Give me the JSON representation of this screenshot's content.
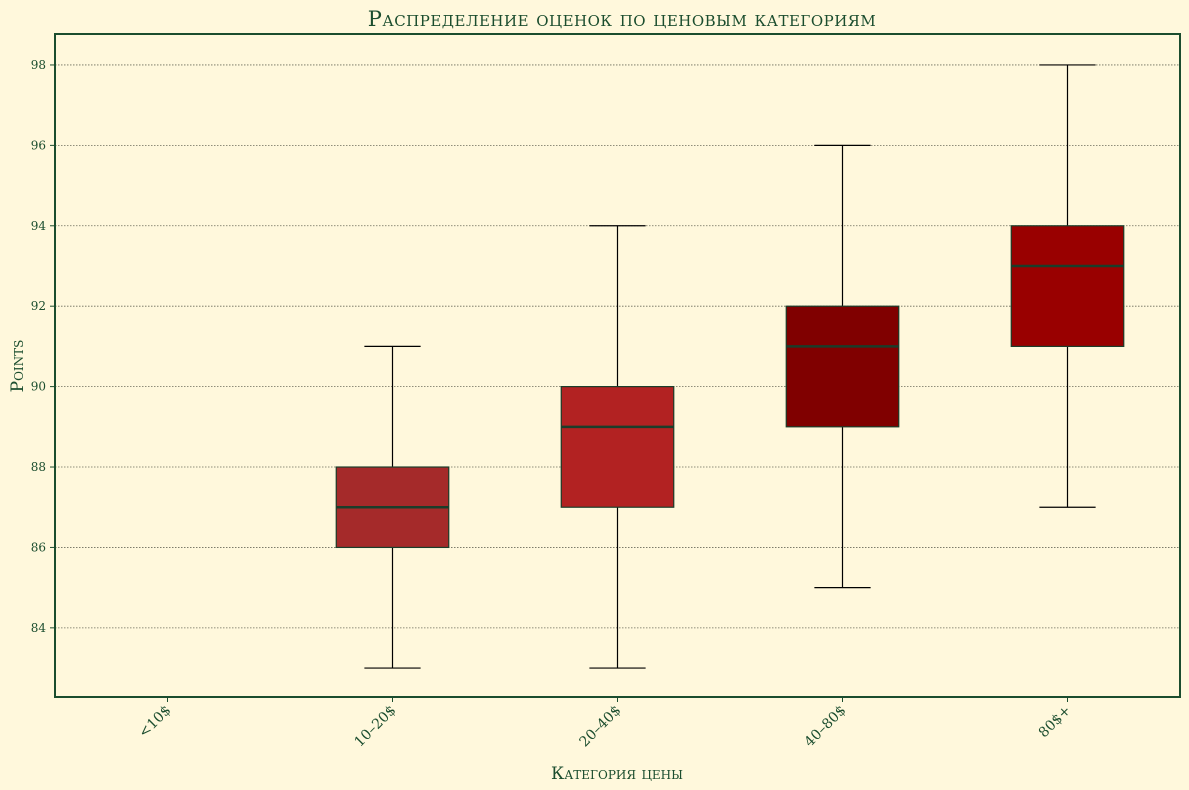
{
  "chart_data": {
    "type": "box",
    "title": "Распределение оценок по ценовым категориям",
    "xlabel": "Категория цены",
    "ylabel": "Points",
    "categories": [
      "<10$",
      "10–20$",
      "20–40$",
      "40–80$",
      "80$+"
    ],
    "boxes": [
      null,
      {
        "whislo": 83,
        "q1": 86,
        "med": 87,
        "q3": 88,
        "whishi": 91,
        "color": "#a52a2a"
      },
      {
        "whislo": 83,
        "q1": 87,
        "med": 89,
        "q3": 90,
        "whishi": 94,
        "color": "#b22222"
      },
      {
        "whislo": 85,
        "q1": 89,
        "med": 91,
        "q3": 92,
        "whishi": 96,
        "color": "#800000"
      },
      {
        "whislo": 87,
        "q1": 91,
        "med": 93,
        "q3": 94,
        "whishi": 98,
        "color": "#990000"
      }
    ],
    "yticks": [
      84,
      86,
      88,
      90,
      92,
      94,
      96,
      98
    ],
    "ylim": [
      82.28,
      98.77
    ],
    "grid": "y-dotted",
    "colors": {
      "background": "#fff8dc",
      "text": "#1b4d2e",
      "median": "#1a3d2a",
      "whisker": "#000000"
    }
  }
}
